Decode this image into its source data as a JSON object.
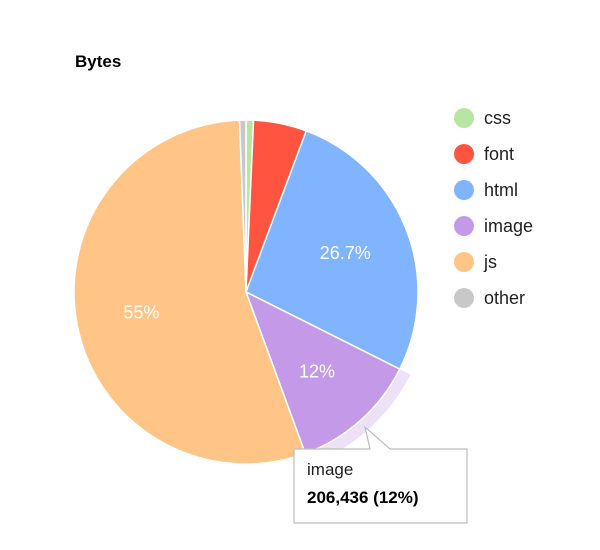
{
  "chart_data": {
    "type": "pie",
    "title": "Bytes",
    "series": [
      {
        "name": "css",
        "value": 0.7,
        "color": "#b7e6a2"
      },
      {
        "name": "font",
        "value": 5.0,
        "color": "#ff5440"
      },
      {
        "name": "html",
        "value": 26.7,
        "color": "#80b4ff",
        "label": "26.7%"
      },
      {
        "name": "image",
        "value": 12.0,
        "color": "#c49ae8",
        "label": "12%"
      },
      {
        "name": "js",
        "value": 55.0,
        "color": "#ffc586",
        "label": "55%"
      },
      {
        "name": "other",
        "value": 0.6,
        "color": "#c8c8c8"
      }
    ],
    "legend_position": "right",
    "highlighted": "image",
    "tooltip": {
      "name": "image",
      "value": "206,436 (12%)"
    }
  }
}
